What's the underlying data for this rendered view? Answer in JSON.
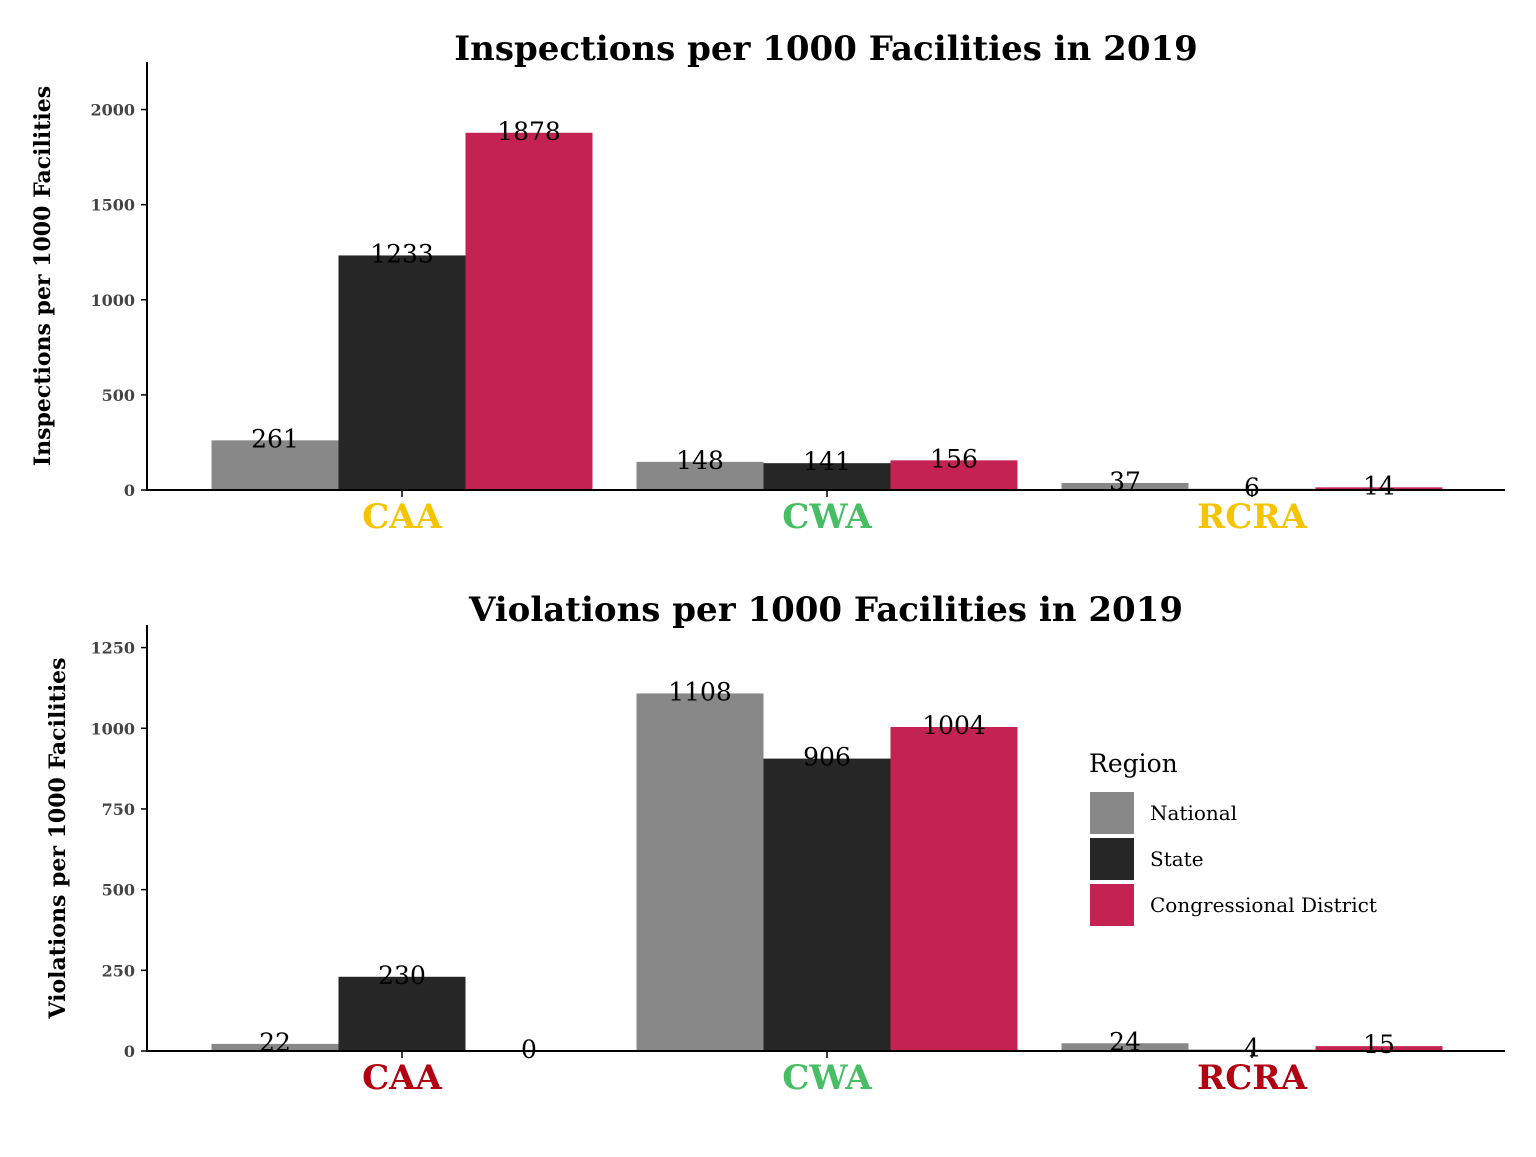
{
  "colors": {
    "National": "#888888",
    "State": "#262626",
    "Congressional District": "#c52254"
  },
  "legend": {
    "title": "Region",
    "items": [
      "National",
      "State",
      "Congressional District"
    ]
  },
  "chart_data": [
    {
      "type": "bar",
      "title": "Inspections per 1000 Facilities in 2019",
      "xlabel": "",
      "ylabel": "Inspections per 1000 Facilities",
      "categories": [
        "CAA",
        "CWA",
        "RCRA"
      ],
      "category_colors": [
        "#f5c400",
        "#47be63",
        "#f5c400"
      ],
      "ylim": [
        0,
        2250
      ],
      "yticks": [
        0,
        500,
        1000,
        1500,
        2000
      ],
      "grid": false,
      "series": [
        {
          "name": "National",
          "values": [
            261,
            148,
            37
          ]
        },
        {
          "name": "State",
          "values": [
            1233,
            141,
            6
          ]
        },
        {
          "name": "Congressional District",
          "values": [
            1878,
            156,
            14
          ]
        }
      ]
    },
    {
      "type": "bar",
      "title": "Violations per 1000 Facilities in 2019",
      "xlabel": "",
      "ylabel": "Violations per 1000 Facilities",
      "categories": [
        "CAA",
        "CWA",
        "RCRA"
      ],
      "category_colors": [
        "#b00012",
        "#47be63",
        "#b00012"
      ],
      "ylim": [
        0,
        1320
      ],
      "yticks": [
        0,
        250,
        500,
        750,
        1000,
        1250
      ],
      "grid": false,
      "legend_position": "right",
      "series": [
        {
          "name": "National",
          "values": [
            22,
            1108,
            24
          ]
        },
        {
          "name": "State",
          "values": [
            230,
            906,
            4
          ]
        },
        {
          "name": "Congressional District",
          "values": [
            0,
            1004,
            15
          ]
        }
      ]
    }
  ]
}
